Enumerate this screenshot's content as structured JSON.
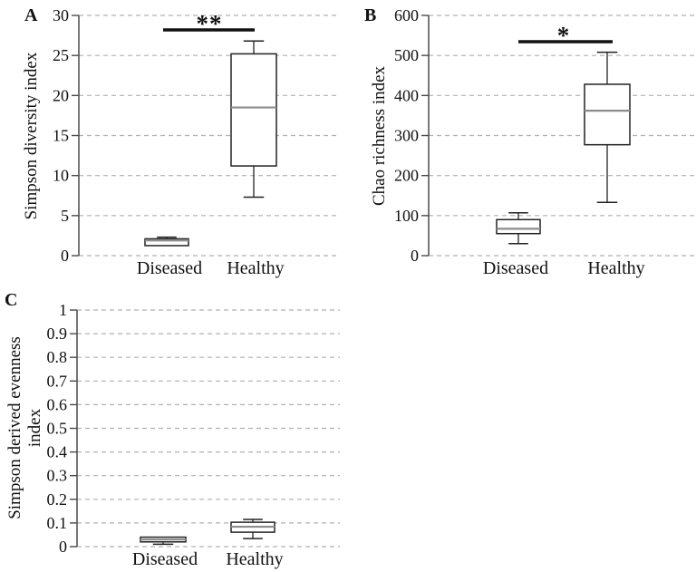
{
  "figure": {
    "background": "#ffffff",
    "colors": {
      "text": "#111111",
      "axis": "#4a4a4a",
      "gridline": "#b0b0b0",
      "box_stroke": "#222222",
      "box_fill": "#ffffff",
      "median": "#8c8c8c",
      "whisker": "#222222",
      "significance": "#111111"
    }
  },
  "chart_data": [
    {
      "type": "box",
      "panel": "A",
      "ylabel": "Simpson diversity index",
      "ylim": [
        0,
        30
      ],
      "yticks": [
        0,
        5,
        10,
        15,
        20,
        25,
        30
      ],
      "ytick_labels": [
        "0",
        "5",
        "10",
        "15",
        "20",
        "25",
        "30"
      ],
      "categories": [
        "Diseased",
        "Healthy"
      ],
      "grid": "dashed-horizontal",
      "legend": null,
      "series": [
        {
          "name": "Diseased",
          "min": 1.25,
          "q1": 1.25,
          "median": 1.9,
          "q3": 2.1,
          "max": 2.3
        },
        {
          "name": "Healthy",
          "min": 7.3,
          "q1": 11.2,
          "median": 18.5,
          "q3": 25.2,
          "max": 26.8
        }
      ],
      "significance": {
        "label": "**",
        "between": [
          "Diseased",
          "Healthy"
        ],
        "bar_y_value": 28.2
      }
    },
    {
      "type": "box",
      "panel": "B",
      "ylabel": "Chao richness index",
      "ylim": [
        0,
        600
      ],
      "yticks": [
        0,
        100,
        200,
        300,
        400,
        500,
        600
      ],
      "ytick_labels": [
        "0",
        "100",
        "200",
        "300",
        "400",
        "500",
        "600"
      ],
      "categories": [
        "Diseased",
        "Healthy"
      ],
      "grid": "dashed-horizontal",
      "legend": null,
      "series": [
        {
          "name": "Diseased",
          "min": 30,
          "q1": 55,
          "median": 67,
          "q3": 90,
          "max": 107
        },
        {
          "name": "Healthy",
          "min": 133,
          "q1": 277,
          "median": 362,
          "q3": 428,
          "max": 508
        }
      ],
      "significance": {
        "label": "*",
        "between": [
          "Diseased",
          "Healthy"
        ],
        "bar_y_value": 535
      }
    },
    {
      "type": "box",
      "panel": "C",
      "ylabel": "Simpson derived evenness index",
      "ylabel_lines": [
        "Simpson derived evenness",
        "index"
      ],
      "ylim": [
        0,
        1
      ],
      "yticks": [
        0,
        0.1,
        0.2,
        0.3,
        0.4,
        0.5,
        0.6,
        0.7,
        0.8,
        0.9,
        1
      ],
      "ytick_labels": [
        "0",
        "0.1",
        "0.2",
        "0.3",
        "0.4",
        "0.5",
        "0.6",
        "0.7",
        "0.8",
        "0.9",
        "1"
      ],
      "categories": [
        "Diseased",
        "Healthy"
      ],
      "grid": "dashed-horizontal",
      "legend": null,
      "series": [
        {
          "name": "Diseased",
          "min": 0.01,
          "q1": 0.02,
          "median": 0.03,
          "q3": 0.04,
          "max": 0.04
        },
        {
          "name": "Healthy",
          "min": 0.034,
          "q1": 0.061,
          "median": 0.084,
          "q3": 0.103,
          "max": 0.115
        }
      ],
      "significance": null
    }
  ]
}
